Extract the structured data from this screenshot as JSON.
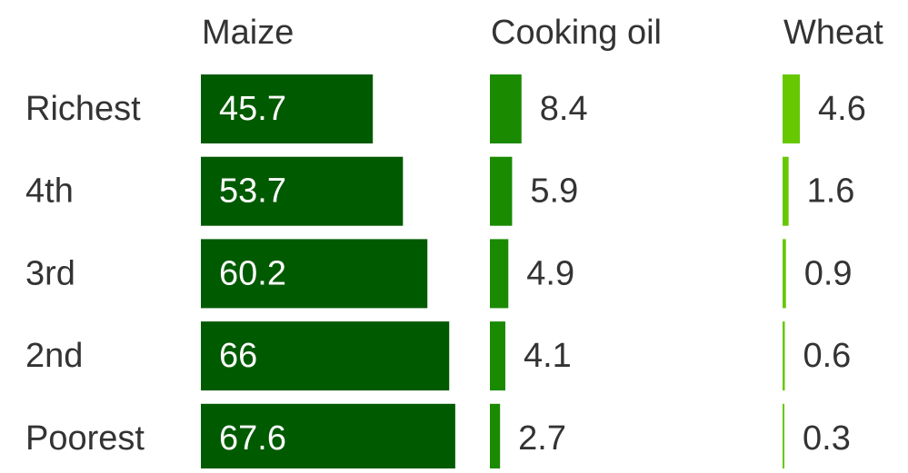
{
  "chart_data": {
    "type": "bar",
    "categories": [
      "Richest",
      "4th",
      "3rd",
      "2nd",
      "Poorest"
    ],
    "series": [
      {
        "name": "Maize",
        "color": "#005a00",
        "values": [
          45.7,
          53.7,
          60.2,
          66,
          67.6
        ]
      },
      {
        "name": "Cooking oil",
        "color": "#1a8a00",
        "values": [
          8.4,
          5.9,
          4.9,
          4.1,
          2.7
        ]
      },
      {
        "name": "Wheat",
        "color": "#66c800",
        "values": [
          4.6,
          1.6,
          0.9,
          0.6,
          0.3
        ]
      }
    ]
  }
}
